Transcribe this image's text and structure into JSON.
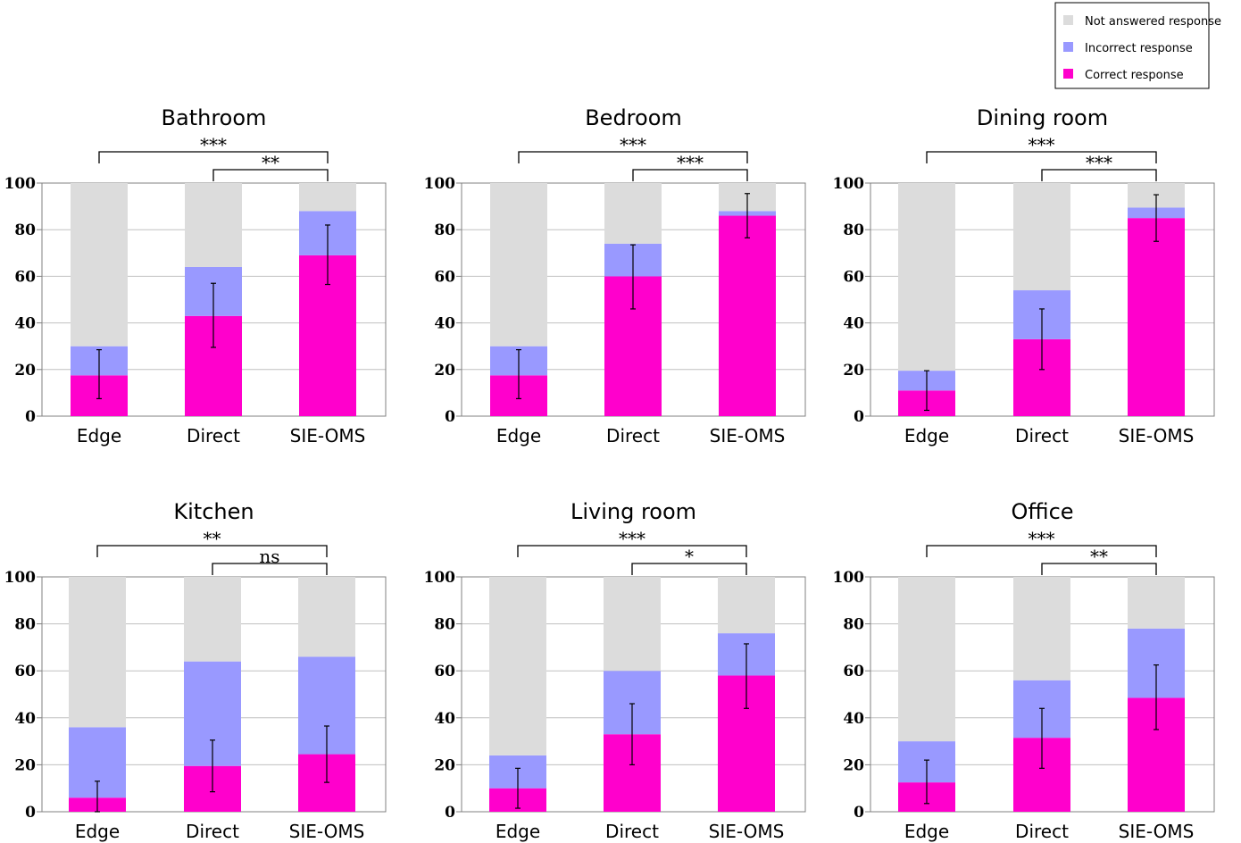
{
  "colors": {
    "not_answered": "#dcdcdc",
    "incorrect": "#9999ff",
    "correct": "#ff00cc",
    "grid": "#c0c0c0",
    "axis": "#808080"
  },
  "legend": {
    "position": "top-right",
    "items": [
      {
        "label": "Not answered response",
        "color": "#dcdcdc"
      },
      {
        "label": "Incorrect response",
        "color": "#9999ff"
      },
      {
        "label": "Correct response",
        "color": "#ff00cc"
      }
    ]
  },
  "chart_data": [
    {
      "type": "bar",
      "title": "Bathroom",
      "categories": [
        "Edge",
        "Direct",
        "SIE-OMS"
      ],
      "ylim": [
        0,
        100
      ],
      "yticks": [
        0,
        20,
        40,
        60,
        80,
        100
      ],
      "series": [
        {
          "name": "Correct response",
          "values": [
            17.5,
            43,
            69
          ],
          "error": [
            [
              7.5,
              28.5
            ],
            [
              29.5,
              57
            ],
            [
              56.5,
              82
            ]
          ]
        },
        {
          "name": "Incorrect response",
          "values": [
            12.5,
            21,
            19
          ]
        },
        {
          "name": "Not answered response",
          "values": [
            70,
            36,
            12
          ]
        }
      ],
      "significance": [
        {
          "pair": [
            "Edge",
            "SIE-OMS"
          ],
          "label": "***"
        },
        {
          "pair": [
            "Direct",
            "SIE-OMS"
          ],
          "label": "**"
        }
      ]
    },
    {
      "type": "bar",
      "title": "Bedroom",
      "categories": [
        "Edge",
        "Direct",
        "SIE-OMS"
      ],
      "ylim": [
        0,
        100
      ],
      "yticks": [
        0,
        20,
        40,
        60,
        80,
        100
      ],
      "series": [
        {
          "name": "Correct response",
          "values": [
            17.5,
            60,
            86
          ],
          "error": [
            [
              7.5,
              28.5
            ],
            [
              46,
              73.5
            ],
            [
              76.5,
              95.5
            ]
          ]
        },
        {
          "name": "Incorrect response",
          "values": [
            12.5,
            14,
            2
          ]
        },
        {
          "name": "Not answered response",
          "values": [
            70,
            26,
            12
          ]
        }
      ],
      "significance": [
        {
          "pair": [
            "Edge",
            "SIE-OMS"
          ],
          "label": "***"
        },
        {
          "pair": [
            "Direct",
            "SIE-OMS"
          ],
          "label": "***"
        }
      ]
    },
    {
      "type": "bar",
      "title": "Dining room",
      "categories": [
        "Edge",
        "Direct",
        "SIE-OMS"
      ],
      "ylim": [
        0,
        100
      ],
      "yticks": [
        0,
        20,
        40,
        60,
        80,
        100
      ],
      "series": [
        {
          "name": "Correct response",
          "values": [
            11,
            33,
            85
          ],
          "error": [
            [
              2.5,
              19.5
            ],
            [
              20,
              46
            ],
            [
              75,
              95
            ]
          ]
        },
        {
          "name": "Incorrect response",
          "values": [
            8.5,
            21,
            4.5
          ]
        },
        {
          "name": "Not answered response",
          "values": [
            80.5,
            46,
            10.5
          ]
        }
      ],
      "significance": [
        {
          "pair": [
            "Edge",
            "SIE-OMS"
          ],
          "label": "***"
        },
        {
          "pair": [
            "Direct",
            "SIE-OMS"
          ],
          "label": "***"
        }
      ]
    },
    {
      "type": "bar",
      "title": "Kitchen",
      "categories": [
        "Edge",
        "Direct",
        "SIE-OMS"
      ],
      "ylim": [
        0,
        100
      ],
      "yticks": [
        0,
        20,
        40,
        60,
        80,
        100
      ],
      "series": [
        {
          "name": "Correct response",
          "values": [
            6,
            19.5,
            24.5
          ],
          "error": [
            [
              0,
              13
            ],
            [
              8.5,
              30.5
            ],
            [
              12.5,
              36.5
            ]
          ]
        },
        {
          "name": "Incorrect response",
          "values": [
            30,
            44.5,
            41.5
          ]
        },
        {
          "name": "Not answered response",
          "values": [
            64,
            36,
            34
          ]
        }
      ],
      "significance": [
        {
          "pair": [
            "Edge",
            "SIE-OMS"
          ],
          "label": "**"
        },
        {
          "pair": [
            "Direct",
            "SIE-OMS"
          ],
          "label": "ns"
        }
      ]
    },
    {
      "type": "bar",
      "title": "Living room",
      "categories": [
        "Edge",
        "Direct",
        "SIE-OMS"
      ],
      "ylim": [
        0,
        100
      ],
      "yticks": [
        0,
        20,
        40,
        60,
        80,
        100
      ],
      "series": [
        {
          "name": "Correct response",
          "values": [
            10,
            33,
            58
          ],
          "error": [
            [
              1.5,
              18.5
            ],
            [
              20,
              46
            ],
            [
              44,
              71.5
            ]
          ]
        },
        {
          "name": "Incorrect response",
          "values": [
            14,
            27,
            18
          ]
        },
        {
          "name": "Not answered response",
          "values": [
            76,
            40,
            24
          ]
        }
      ],
      "significance": [
        {
          "pair": [
            "Edge",
            "SIE-OMS"
          ],
          "label": "***"
        },
        {
          "pair": [
            "Direct",
            "SIE-OMS"
          ],
          "label": "*"
        }
      ]
    },
    {
      "type": "bar",
      "title": "Office",
      "categories": [
        "Edge",
        "Direct",
        "SIE-OMS"
      ],
      "ylim": [
        0,
        100
      ],
      "yticks": [
        0,
        20,
        40,
        60,
        80,
        100
      ],
      "series": [
        {
          "name": "Correct response",
          "values": [
            12.5,
            31.5,
            48.5
          ],
          "error": [
            [
              3.5,
              22
            ],
            [
              18.5,
              44
            ],
            [
              35,
              62.5
            ]
          ]
        },
        {
          "name": "Incorrect response",
          "values": [
            17.5,
            24.5,
            29.5
          ]
        },
        {
          "name": "Not answered response",
          "values": [
            70,
            44,
            22
          ]
        }
      ],
      "significance": [
        {
          "pair": [
            "Edge",
            "SIE-OMS"
          ],
          "label": "***"
        },
        {
          "pair": [
            "Direct",
            "SIE-OMS"
          ],
          "label": "**"
        }
      ]
    }
  ]
}
